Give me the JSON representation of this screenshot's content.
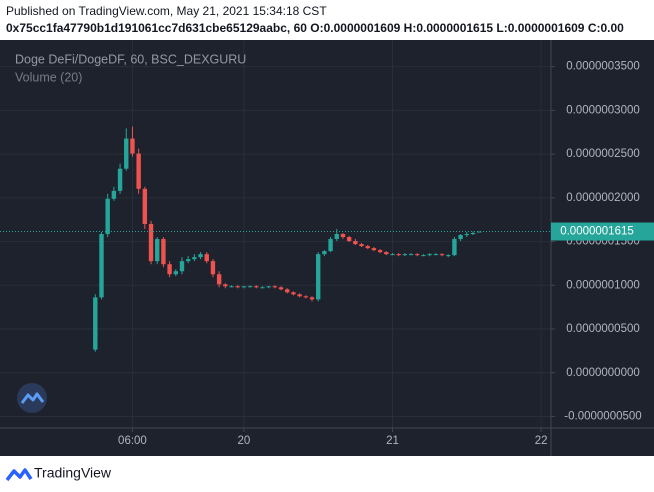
{
  "header": {
    "published": "Published on TradingView.com, May 21, 2021 15:34:18 CST",
    "symbol_line": "0x75cc1fa47790b1d191061cc7d631cbe65129aabc, 60 O:0.0000001609 H:0.0000001615 L:0.0000001609 C:0.00"
  },
  "footer": {
    "brand": "TradingView"
  },
  "chart_data": {
    "type": "candlestick",
    "title": "Doge DeFi/DogeDF, 60, BSC_DEXGURU",
    "subtitle": "Volume (20)",
    "up_color": "#26a69a",
    "down_color": "#ef5350",
    "grid": true,
    "x": [
      0,
      1,
      2,
      3,
      4,
      5,
      6,
      7,
      8,
      9,
      10,
      11,
      12,
      13,
      14,
      15,
      16,
      17,
      18,
      19,
      20,
      21,
      22,
      23,
      24,
      25,
      26,
      27,
      28,
      29,
      30,
      31,
      32,
      33,
      34,
      35,
      36,
      37,
      38,
      39,
      40,
      41,
      42,
      43,
      44,
      45,
      46,
      47,
      48,
      49,
      50,
      51,
      52,
      53,
      54,
      55,
      56,
      57,
      58,
      59,
      60,
      61,
      62
    ],
    "open": [
      2.64e-08,
      8.62e-08,
      1.586e-07,
      1.989e-07,
      2.08e-07,
      2.333e-07,
      2.678e-07,
      2.506e-07,
      2.103e-07,
      1.701e-07,
      1.276e-07,
      1.529e-07,
      1.241e-07,
      1.126e-07,
      1.161e-07,
      1.276e-07,
      1.299e-07,
      1.322e-07,
      1.356e-07,
      1.276e-07,
      1.126e-07,
      1.011e-07,
      9.89e-08,
      9.89e-08,
      9.77e-08,
      9.89e-08,
      9.89e-08,
      9.77e-08,
      9.77e-08,
      9.89e-08,
      9.77e-08,
      9.54e-08,
      9.2e-08,
      8.97e-08,
      8.74e-08,
      8.62e-08,
      8.39e-08,
      1.356e-07,
      1.391e-07,
      1.529e-07,
      1.586e-07,
      1.552e-07,
      1.506e-07,
      1.471e-07,
      1.448e-07,
      1.425e-07,
      1.402e-07,
      1.379e-07,
      1.356e-07,
      1.356e-07,
      1.345e-07,
      1.356e-07,
      1.356e-07,
      1.345e-07,
      1.345e-07,
      1.356e-07,
      1.356e-07,
      1.345e-07,
      1.345e-07,
      1.529e-07,
      1.575e-07,
      1.586e-07,
      1.609e-07
    ],
    "high": [
      8.97e-08,
      1.609e-07,
      2.046e-07,
      2.126e-07,
      2.391e-07,
      2.793e-07,
      2.816e-07,
      2.563e-07,
      2.126e-07,
      1.736e-07,
      1.552e-07,
      1.552e-07,
      1.276e-07,
      1.184e-07,
      1.322e-07,
      1.333e-07,
      1.356e-07,
      1.379e-07,
      1.379e-07,
      1.299e-07,
      1.161e-07,
      1.023e-07,
      1e-07,
      1e-07,
      9.89e-08,
      1e-07,
      1e-07,
      9.89e-08,
      9.89e-08,
      1e-07,
      9.89e-08,
      9.66e-08,
      9.31e-08,
      9.08e-08,
      8.85e-08,
      8.74e-08,
      1.379e-07,
      1.402e-07,
      1.552e-07,
      1.644e-07,
      1.598e-07,
      1.563e-07,
      1.529e-07,
      1.483e-07,
      1.46e-07,
      1.437e-07,
      1.414e-07,
      1.391e-07,
      1.368e-07,
      1.368e-07,
      1.368e-07,
      1.368e-07,
      1.368e-07,
      1.356e-07,
      1.368e-07,
      1.368e-07,
      1.368e-07,
      1.356e-07,
      1.552e-07,
      1.586e-07,
      1.609e-07,
      1.615e-07,
      1.615e-07
    ],
    "low": [
      2.41e-08,
      8.39e-08,
      1.552e-07,
      1.966e-07,
      2.046e-07,
      2.31e-07,
      2.471e-07,
      2.046e-07,
      1.644e-07,
      1.241e-07,
      1.241e-07,
      1.207e-07,
      1.092e-07,
      1.103e-07,
      1.126e-07,
      1.253e-07,
      1.276e-07,
      1.299e-07,
      1.253e-07,
      1.092e-07,
      9.77e-08,
      9.66e-08,
      9.77e-08,
      9.66e-08,
      9.66e-08,
      9.77e-08,
      9.66e-08,
      9.66e-08,
      9.66e-08,
      9.66e-08,
      9.43e-08,
      9.08e-08,
      8.85e-08,
      8.62e-08,
      8.51e-08,
      8.16e-08,
      8.16e-08,
      1.333e-07,
      1.379e-07,
      1.506e-07,
      1.529e-07,
      1.494e-07,
      1.46e-07,
      1.437e-07,
      1.414e-07,
      1.391e-07,
      1.368e-07,
      1.345e-07,
      1.345e-07,
      1.333e-07,
      1.333e-07,
      1.345e-07,
      1.333e-07,
      1.333e-07,
      1.333e-07,
      1.345e-07,
      1.333e-07,
      1.322e-07,
      1.333e-07,
      1.506e-07,
      1.552e-07,
      1.575e-07,
      1.609e-07
    ],
    "close": [
      8.62e-08,
      1.586e-07,
      1.989e-07,
      2.08e-07,
      2.333e-07,
      2.678e-07,
      2.506e-07,
      2.103e-07,
      1.701e-07,
      1.276e-07,
      1.529e-07,
      1.241e-07,
      1.126e-07,
      1.161e-07,
      1.276e-07,
      1.299e-07,
      1.322e-07,
      1.356e-07,
      1.276e-07,
      1.126e-07,
      1.011e-07,
      9.89e-08,
      9.89e-08,
      9.77e-08,
      9.89e-08,
      9.89e-08,
      9.77e-08,
      9.77e-08,
      9.89e-08,
      9.77e-08,
      9.54e-08,
      9.2e-08,
      8.97e-08,
      8.74e-08,
      8.62e-08,
      8.39e-08,
      1.356e-07,
      1.391e-07,
      1.529e-07,
      1.586e-07,
      1.552e-07,
      1.506e-07,
      1.471e-07,
      1.448e-07,
      1.425e-07,
      1.402e-07,
      1.379e-07,
      1.356e-07,
      1.356e-07,
      1.345e-07,
      1.356e-07,
      1.356e-07,
      1.345e-07,
      1.345e-07,
      1.356e-07,
      1.356e-07,
      1.345e-07,
      1.345e-07,
      1.529e-07,
      1.575e-07,
      1.586e-07,
      1.598e-07,
      1.615e-07
    ],
    "xlim": [
      -14.1,
      73.6
    ],
    "xticks": [
      {
        "value": 6,
        "label": "06:00"
      },
      {
        "value": 24,
        "label": "20"
      },
      {
        "value": 48,
        "label": "21"
      },
      {
        "value": 72,
        "label": "22"
      }
    ],
    "ylim": [
      -6.32e-08,
      3.805e-07
    ],
    "yticks": [
      {
        "value": -5e-08,
        "label": "-0.0000000500"
      },
      {
        "value": 0,
        "label": "0.0000000000"
      },
      {
        "value": 5e-08,
        "label": "0.0000000500"
      },
      {
        "value": 1e-07,
        "label": "0.0000001000"
      },
      {
        "value": 1.5e-07,
        "label": "0.0000001500"
      },
      {
        "value": 2e-07,
        "label": "0.0000002000"
      },
      {
        "value": 2.5e-07,
        "label": "0.0000002500"
      },
      {
        "value": 3e-07,
        "label": "0.0000003000"
      },
      {
        "value": 3.5e-07,
        "label": "0.0000003500"
      }
    ],
    "last_price": {
      "value": 1.615e-07,
      "label": "0.0000001615"
    }
  }
}
